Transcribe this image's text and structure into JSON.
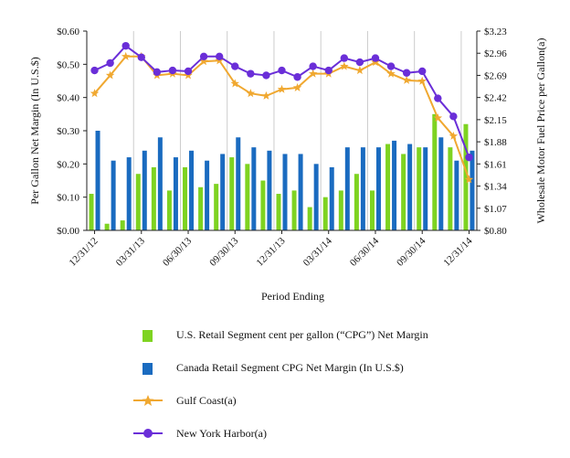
{
  "chart_data": {
    "type": "bar+line",
    "xlabel": "Period Ending",
    "ylabel_left": "Per Gallon Net Margin (In U.S.$)",
    "ylabel_right": "Wholesale Motor Fuel Price per Gallon(a)",
    "ylim_left": [
      0,
      0.6
    ],
    "ylim_right": [
      0.8,
      3.23
    ],
    "yticks_left": [
      "$0.00",
      "$0.10",
      "$0.20",
      "$0.30",
      "$0.40",
      "$0.50",
      "$0.60"
    ],
    "yticks_right": [
      "$0.80",
      "$1.07",
      "$1.34",
      "$1.61",
      "$1.88",
      "$2.15",
      "$2.42",
      "$2.69",
      "$2.96",
      "$3.23"
    ],
    "x_tick_labels": [
      {
        "index": 0,
        "label": "12/31/12"
      },
      {
        "index": 3,
        "label": "03/31/13"
      },
      {
        "index": 6,
        "label": "06/30/13"
      },
      {
        "index": 9,
        "label": "09/30/13"
      },
      {
        "index": 12,
        "label": "12/31/13"
      },
      {
        "index": 15,
        "label": "03/31/14"
      },
      {
        "index": 18,
        "label": "06/30/14"
      },
      {
        "index": 21,
        "label": "09/30/14"
      },
      {
        "index": 24,
        "label": "12/31/14"
      }
    ],
    "n_periods": 25,
    "series": [
      {
        "name": "U.S. Retail Segment cent per gallon (“CPG”) Net Margin",
        "kind": "bar",
        "axis": "left",
        "color": "#7ed321",
        "values": [
          0.11,
          0.02,
          0.03,
          0.17,
          0.19,
          0.12,
          0.19,
          0.13,
          0.14,
          0.22,
          0.2,
          0.15,
          0.11,
          0.12,
          0.07,
          0.1,
          0.12,
          0.17,
          0.12,
          0.26,
          0.23,
          0.25,
          0.35,
          0.25,
          0.32
        ]
      },
      {
        "name": "Canada Retail Segment CPG Net Margin (In U.S.$)",
        "kind": "bar",
        "axis": "left",
        "color": "#1a6bc0",
        "values": [
          0.3,
          0.21,
          0.22,
          0.24,
          0.28,
          0.22,
          0.24,
          0.21,
          0.23,
          0.28,
          0.25,
          0.24,
          0.23,
          0.23,
          0.2,
          0.19,
          0.25,
          0.25,
          0.25,
          0.27,
          0.26,
          0.25,
          0.28,
          0.21,
          0.24
        ]
      },
      {
        "name": "Gulf Coast(a)",
        "kind": "line",
        "axis": "right",
        "color": "#f0a830",
        "marker": "star",
        "values": [
          2.47,
          2.69,
          2.92,
          2.92,
          2.69,
          2.71,
          2.69,
          2.86,
          2.87,
          2.59,
          2.47,
          2.44,
          2.52,
          2.54,
          2.71,
          2.71,
          2.8,
          2.75,
          2.85,
          2.71,
          2.63,
          2.62,
          2.17,
          1.95,
          1.42
        ]
      },
      {
        "name": "New York Harbor(a)",
        "kind": "line",
        "axis": "right",
        "color": "#6a2ed8",
        "marker": "circle",
        "values": [
          2.75,
          2.84,
          3.05,
          2.91,
          2.73,
          2.75,
          2.74,
          2.92,
          2.92,
          2.8,
          2.71,
          2.69,
          2.75,
          2.67,
          2.8,
          2.75,
          2.9,
          2.85,
          2.9,
          2.8,
          2.72,
          2.74,
          2.41,
          2.19,
          1.69
        ]
      }
    ]
  },
  "legend": {
    "items": [
      {
        "label": "U.S. Retail Segment cent per gallon (“CPG”) Net Margin",
        "type": "bar",
        "color": "#7ed321"
      },
      {
        "label": "Canada Retail Segment CPG Net Margin (In U.S.$)",
        "type": "bar",
        "color": "#1a6bc0"
      },
      {
        "label": "Gulf Coast(a)",
        "type": "line",
        "color": "#f0a830",
        "marker": "star"
      },
      {
        "label": "New York Harbor(a)",
        "type": "line",
        "color": "#6a2ed8",
        "marker": "circle"
      }
    ]
  }
}
